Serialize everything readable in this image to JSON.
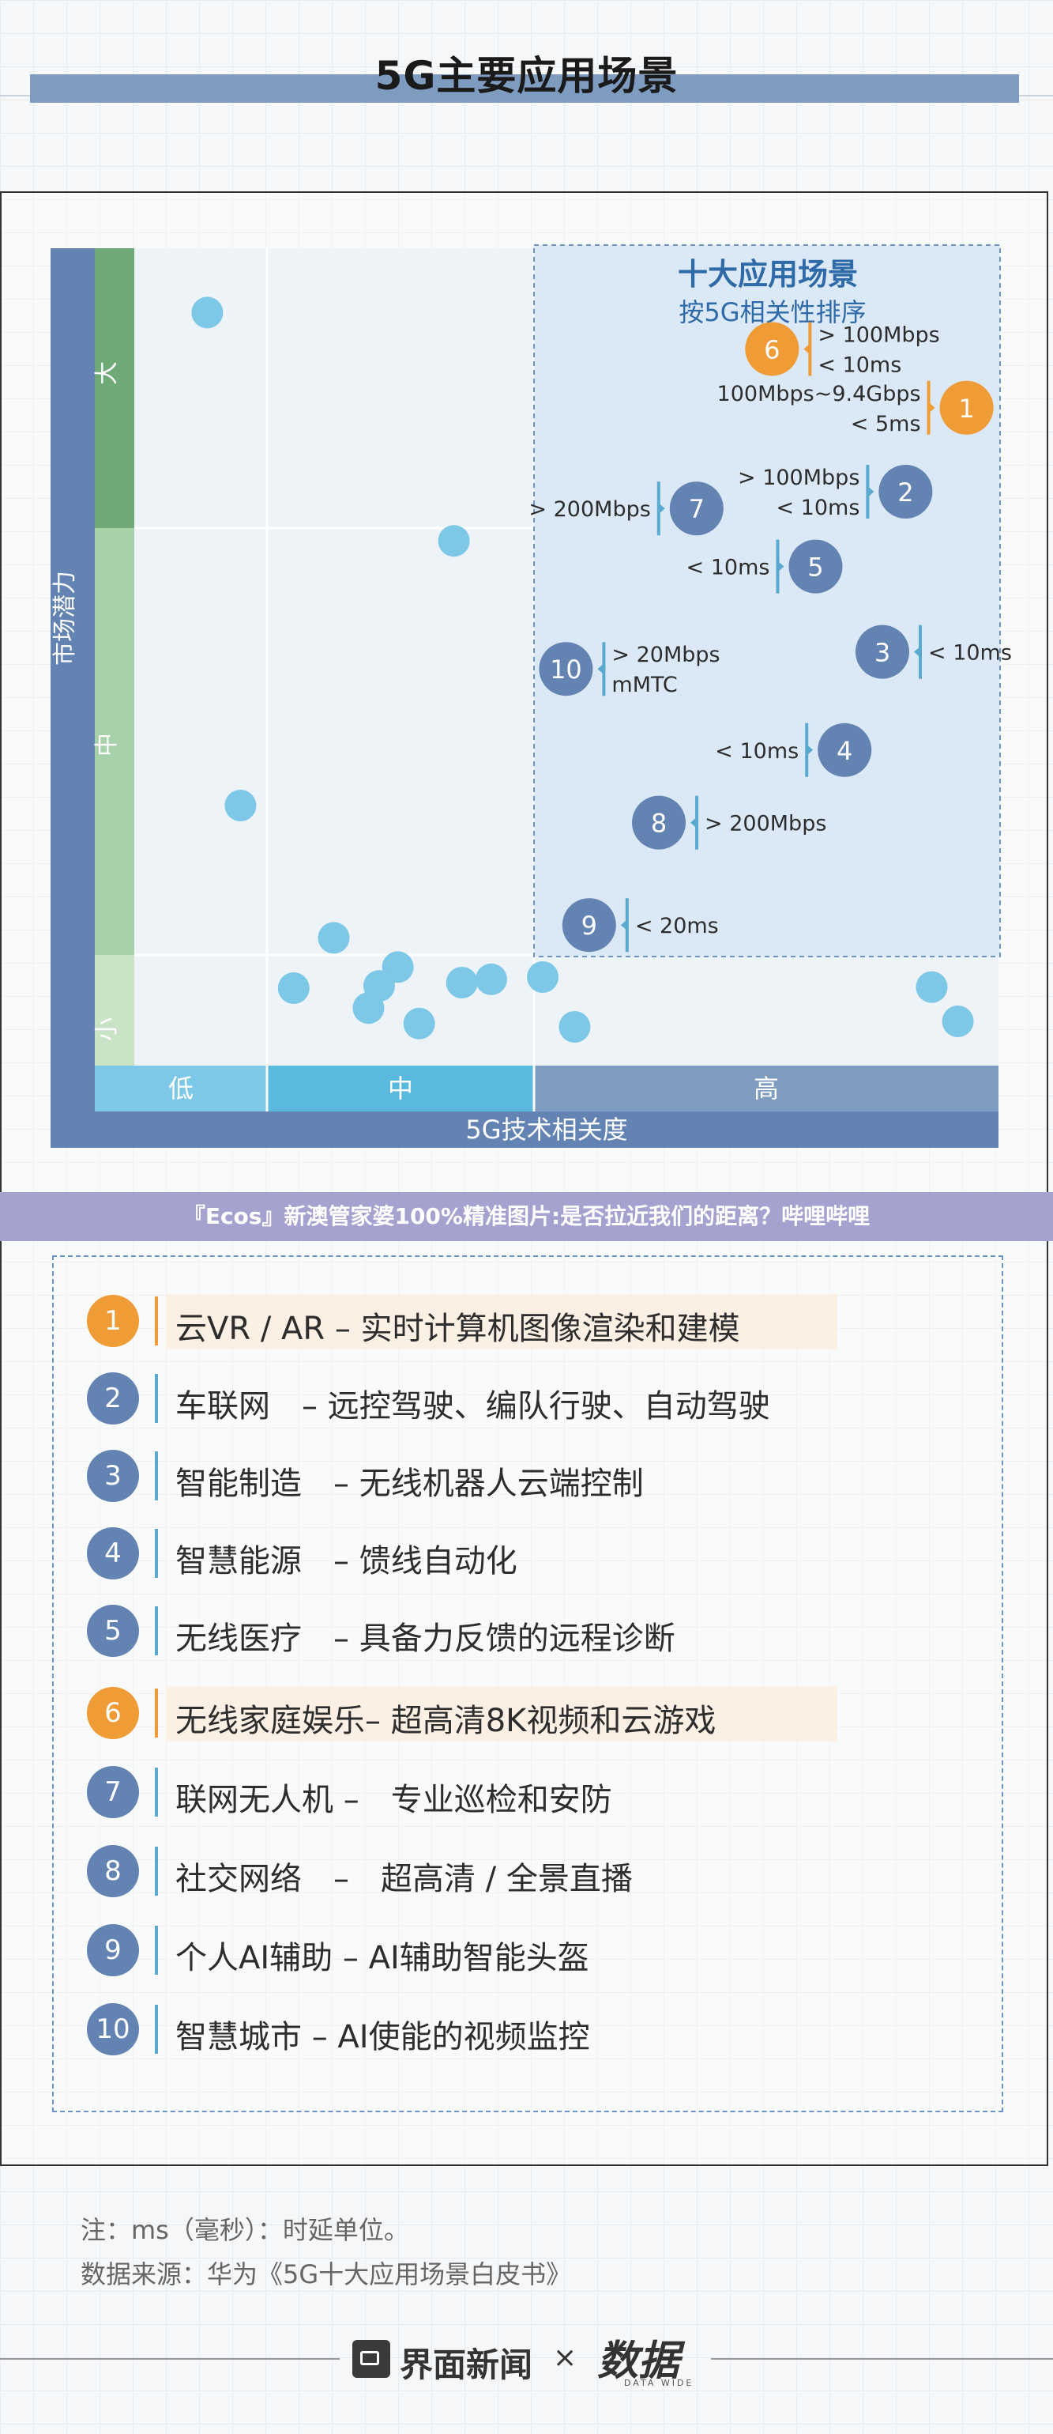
{
  "page": {
    "title": "5G主要应用场景",
    "banner": "『Ecos』新澳管家婆100%精准图片:是否拉近我们的距离？哔哩哔哩",
    "note": "注：ms（毫秒）：时延单位。",
    "source": "数据来源：华为《5G十大应用场景白皮书》",
    "brand": "界面新闻",
    "brand_separator": "×",
    "partner": "数据",
    "partner_sub": "DATA WIDE"
  },
  "colors": {
    "accent_orange": "#ef9b36",
    "accent_blue": "#6383b2",
    "dot_light_blue": "#7cc8e6",
    "panel_blue": "#dbe8f5"
  },
  "chart_data": {
    "type": "scatter",
    "title": "",
    "xlabel": "5G技术相关度",
    "ylabel": "市场潜力",
    "x_bands": [
      "低",
      "中",
      "高"
    ],
    "y_bands": [
      "小",
      "中",
      "大"
    ],
    "panel_title": "十大应用场景",
    "panel_subtitle": "按5G相关性排序",
    "minor_points": [
      {
        "x": 0.55,
        "y": 2.77
      },
      {
        "x": 1.7,
        "y": 1.97
      },
      {
        "x": 0.8,
        "y": 1.35
      },
      {
        "x": 1.25,
        "y": 1.04
      },
      {
        "x": 1.49,
        "y": 0.89
      },
      {
        "x": 1.73,
        "y": 0.75
      },
      {
        "x": 1.84,
        "y": 0.78
      },
      {
        "x": 2.03,
        "y": 0.8
      },
      {
        "x": 1.1,
        "y": 0.7
      },
      {
        "x": 1.42,
        "y": 0.72
      },
      {
        "x": 1.38,
        "y": 0.52
      },
      {
        "x": 1.57,
        "y": 0.38
      },
      {
        "x": 2.14,
        "y": 0.35
      },
      {
        "x": 3.37,
        "y": 0.71
      },
      {
        "x": 3.46,
        "y": 0.4
      }
    ],
    "scenarios": [
      {
        "rank": "1",
        "x": 3.49,
        "y": 2.43,
        "highlight": true,
        "labels": [
          "100Mbps~9.4Gbps",
          "< 5ms"
        ],
        "label_side": "left"
      },
      {
        "rank": "2",
        "x": 3.28,
        "y": 2.13,
        "highlight": false,
        "labels": [
          "> 100Mbps",
          "< 10ms"
        ],
        "label_side": "left"
      },
      {
        "rank": "3",
        "x": 3.2,
        "y": 1.71,
        "highlight": false,
        "labels": [
          "< 10ms"
        ],
        "label_side": "right"
      },
      {
        "rank": "4",
        "x": 3.07,
        "y": 1.48,
        "highlight": false,
        "labels": [
          "< 10ms"
        ],
        "label_side": "left"
      },
      {
        "rank": "5",
        "x": 2.97,
        "y": 1.91,
        "highlight": false,
        "labels": [
          "< 10ms"
        ],
        "label_side": "left"
      },
      {
        "rank": "6",
        "x": 2.82,
        "y": 2.64,
        "highlight": true,
        "labels": [
          "> 100Mbps",
          "< 10ms"
        ],
        "label_side": "right"
      },
      {
        "rank": "7",
        "x": 2.56,
        "y": 2.07,
        "highlight": false,
        "labels": [
          "> 200Mbps"
        ],
        "label_side": "left"
      },
      {
        "rank": "8",
        "x": 2.43,
        "y": 1.31,
        "highlight": false,
        "labels": [
          "> 200Mbps"
        ],
        "label_side": "right"
      },
      {
        "rank": "9",
        "x": 2.19,
        "y": 1.07,
        "highlight": false,
        "labels": [
          "< 20ms"
        ],
        "label_side": "right"
      },
      {
        "rank": "10",
        "x": 2.11,
        "y": 1.67,
        "highlight": false,
        "labels": [
          "> 20Mbps",
          "mMTC"
        ],
        "label_side": "right"
      }
    ]
  },
  "scenario_list": [
    {
      "rank": "1",
      "text": "云VR / AR – 实时计算机图像渲染和建模",
      "highlight": true
    },
    {
      "rank": "2",
      "text": "车联网　– 远控驾驶、编队行驶、自动驾驶",
      "highlight": false
    },
    {
      "rank": "3",
      "text": "智能制造　– 无线机器人云端控制",
      "highlight": false
    },
    {
      "rank": "4",
      "text": "智慧能源　– 馈线自动化",
      "highlight": false
    },
    {
      "rank": "5",
      "text": "无线医疗　– 具备力反馈的远程诊断",
      "highlight": false
    },
    {
      "rank": "6",
      "text": "无线家庭娱乐– 超高清8K视频和云游戏",
      "highlight": true
    },
    {
      "rank": "7",
      "text": "联网无人机 –　专业巡检和安防",
      "highlight": false
    },
    {
      "rank": "8",
      "text": "社交网络　–　超高清 / 全景直播",
      "highlight": false
    },
    {
      "rank": "9",
      "text": "个人AI辅助 – AI辅助智能头盔",
      "highlight": false
    },
    {
      "rank": "10",
      "text": "智慧城市 – AI使能的视频监控",
      "highlight": false
    }
  ]
}
